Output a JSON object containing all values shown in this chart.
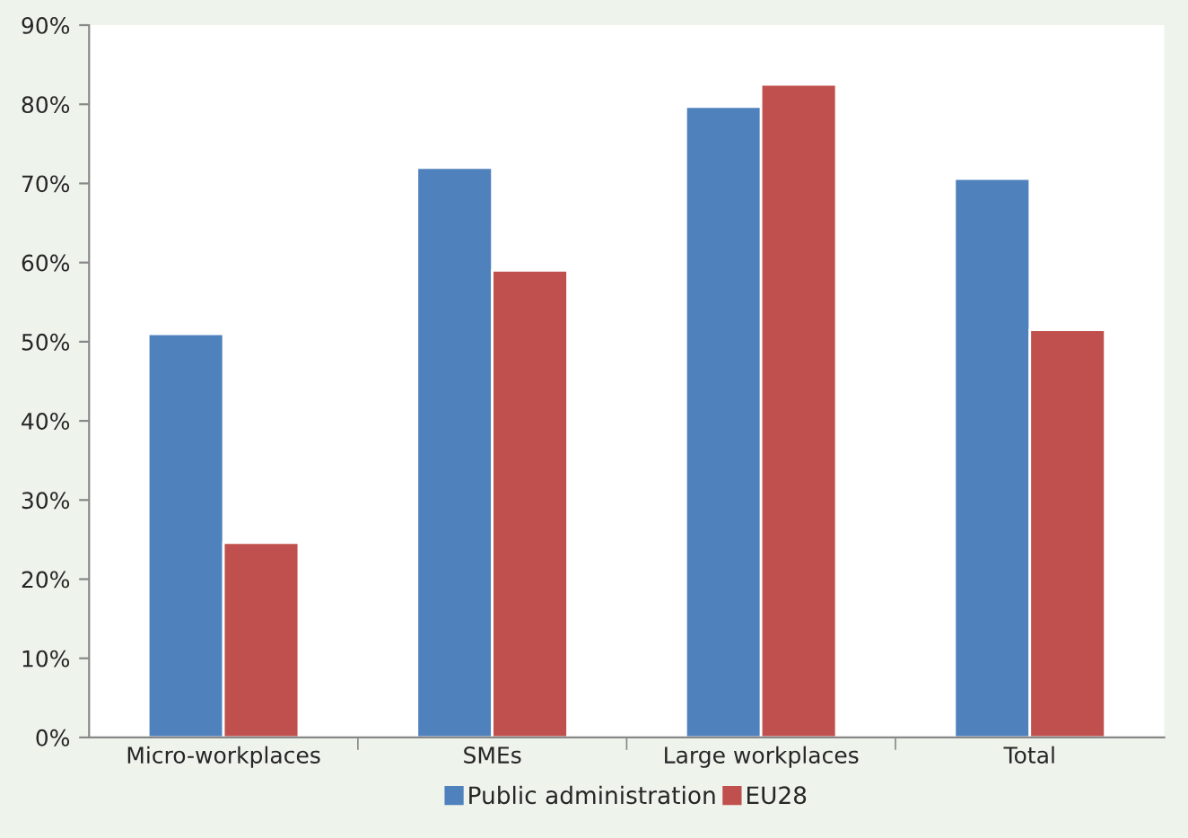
{
  "chart_data": {
    "type": "bar",
    "categories": [
      "Micro-workplaces",
      "SMEs",
      "Large workplaces",
      "Total"
    ],
    "series": [
      {
        "name": "Public administration",
        "color": "#4f81bd",
        "values": [
          51.0,
          72.0,
          79.7,
          70.6
        ]
      },
      {
        "name": "EU28",
        "color": "#c0504d",
        "values": [
          24.6,
          59.0,
          82.5,
          51.5
        ]
      }
    ],
    "ylim": [
      0,
      90
    ],
    "yticks": [
      {
        "value": 0,
        "label": "0%"
      },
      {
        "value": 10,
        "label": "10%"
      },
      {
        "value": 20,
        "label": "20%"
      },
      {
        "value": 30,
        "label": "30%"
      },
      {
        "value": 40,
        "label": "40%"
      },
      {
        "value": 50,
        "label": "50%"
      },
      {
        "value": 60,
        "label": "60%"
      },
      {
        "value": 70,
        "label": "70%"
      },
      {
        "value": 80,
        "label": "80%"
      },
      {
        "value": 90,
        "label": "90%"
      }
    ],
    "grid": false,
    "legend": "bottom"
  }
}
